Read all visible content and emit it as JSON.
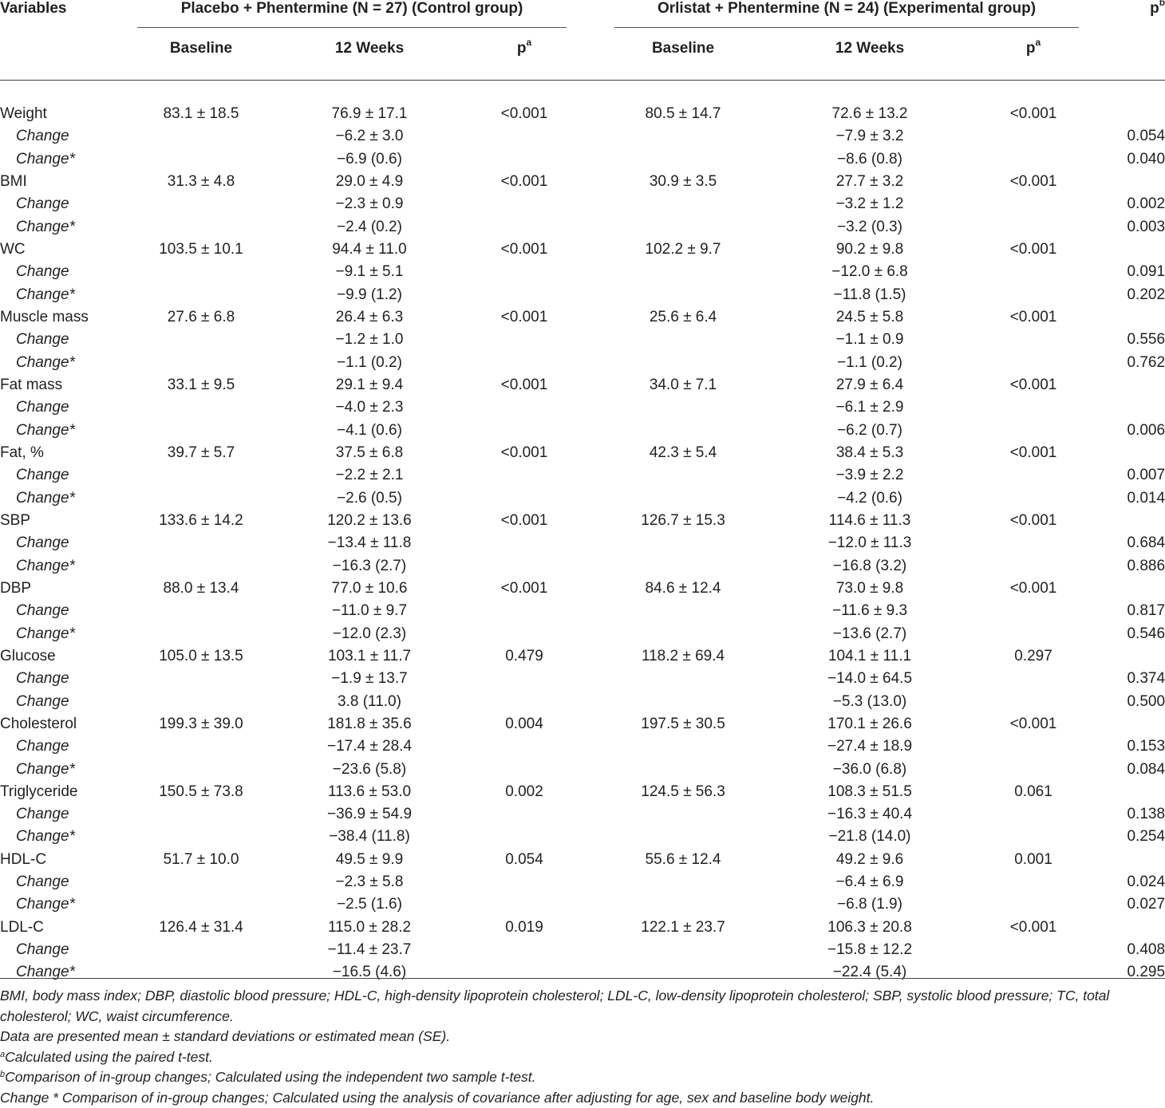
{
  "header": {
    "variables": "Variables",
    "control_group": "Placebo + Phentermine (N = 27) (Control group)",
    "experimental_group": "Orlistat + Phentermine (N = 24) (Experimental group)",
    "pb": "p",
    "pb_sup": "b",
    "baseline": "Baseline",
    "weeks12": "12 Weeks",
    "pa": "p",
    "pa_sup": "a"
  },
  "rows": [
    {
      "var": "Weight",
      "sub": false,
      "cb": "83.1 ± 18.5",
      "cw": "76.9 ± 17.1",
      "cp": "<0.001",
      "eb": "80.5 ± 14.7",
      "ew": "72.6 ± 13.2",
      "ep": "<0.001",
      "pb": ""
    },
    {
      "var": "Change",
      "sub": true,
      "cb": "",
      "cw": "−6.2 ± 3.0",
      "cp": "",
      "eb": "",
      "ew": "−7.9 ± 3.2",
      "ep": "",
      "pb": "0.054"
    },
    {
      "var": "Change*",
      "sub": true,
      "cb": "",
      "cw": "−6.9 (0.6)",
      "cp": "",
      "eb": "",
      "ew": "−8.6 (0.8)",
      "ep": "",
      "pb": "0.040"
    },
    {
      "var": "BMI",
      "sub": false,
      "cb": "31.3 ± 4.8",
      "cw": "29.0 ± 4.9",
      "cp": "<0.001",
      "eb": "30.9 ± 3.5",
      "ew": "27.7 ± 3.2",
      "ep": "<0.001",
      "pb": ""
    },
    {
      "var": "Change",
      "sub": true,
      "cb": "",
      "cw": "−2.3 ± 0.9",
      "cp": "",
      "eb": "",
      "ew": "−3.2 ± 1.2",
      "ep": "",
      "pb": "0.002"
    },
    {
      "var": "Change*",
      "sub": true,
      "cb": "",
      "cw": "−2.4 (0.2)",
      "cp": "",
      "eb": "",
      "ew": "−3.2 (0.3)",
      "ep": "",
      "pb": "0.003"
    },
    {
      "var": "WC",
      "sub": false,
      "cb": "103.5 ± 10.1",
      "cw": "94.4 ± 11.0",
      "cp": "<0.001",
      "eb": "102.2 ± 9.7",
      "ew": "90.2 ± 9.8",
      "ep": "<0.001",
      "pb": ""
    },
    {
      "var": "Change",
      "sub": true,
      "cb": "",
      "cw": "−9.1 ± 5.1",
      "cp": "",
      "eb": "",
      "ew": "−12.0 ± 6.8",
      "ep": "",
      "pb": "0.091"
    },
    {
      "var": "Change*",
      "sub": true,
      "cb": "",
      "cw": "−9.9 (1.2)",
      "cp": "",
      "eb": "",
      "ew": "−11.8 (1.5)",
      "ep": "",
      "pb": "0.202"
    },
    {
      "var": "Muscle mass",
      "sub": false,
      "cb": "27.6 ± 6.8",
      "cw": "26.4 ± 6.3",
      "cp": "<0.001",
      "eb": "25.6 ± 6.4",
      "ew": "24.5 ± 5.8",
      "ep": "<0.001",
      "pb": ""
    },
    {
      "var": "Change",
      "sub": true,
      "cb": "",
      "cw": "−1.2 ± 1.0",
      "cp": "",
      "eb": "",
      "ew": "−1.1 ± 0.9",
      "ep": "",
      "pb": "0.556"
    },
    {
      "var": "Change*",
      "sub": true,
      "cb": "",
      "cw": "−1.1 (0.2)",
      "cp": "",
      "eb": "",
      "ew": "−1.1 (0.2)",
      "ep": "",
      "pb": "0.762"
    },
    {
      "var": "Fat mass",
      "sub": false,
      "cb": "33.1 ± 9.5",
      "cw": "29.1 ± 9.4",
      "cp": "<0.001",
      "eb": "34.0 ± 7.1",
      "ew": "27.9 ± 6.4",
      "ep": "<0.001",
      "pb": ""
    },
    {
      "var": "Change",
      "sub": true,
      "cb": "",
      "cw": "−4.0 ± 2.3",
      "cp": "",
      "eb": "",
      "ew": "−6.1 ± 2.9",
      "ep": "",
      "pb": ""
    },
    {
      "var": "Change*",
      "sub": true,
      "cb": "",
      "cw": "−4.1 (0.6)",
      "cp": "",
      "eb": "",
      "ew": "−6.2 (0.7)",
      "ep": "",
      "pb": "0.006"
    },
    {
      "var": "Fat, %",
      "sub": false,
      "cb": "39.7 ± 5.7",
      "cw": "37.5 ± 6.8",
      "cp": "<0.001",
      "eb": "42.3 ± 5.4",
      "ew": "38.4 ± 5.3",
      "ep": "<0.001",
      "pb": ""
    },
    {
      "var": "Change",
      "sub": true,
      "cb": "",
      "cw": "−2.2 ± 2.1",
      "cp": "",
      "eb": "",
      "ew": "−3.9 ± 2.2",
      "ep": "",
      "pb": "0.007"
    },
    {
      "var": "Change*",
      "sub": true,
      "cb": "",
      "cw": "−2.6 (0.5)",
      "cp": "",
      "eb": "",
      "ew": "−4.2 (0.6)",
      "ep": "",
      "pb": "0.014"
    },
    {
      "var": "SBP",
      "sub": false,
      "cb": "133.6 ± 14.2",
      "cw": "120.2 ± 13.6",
      "cp": "<0.001",
      "eb": "126.7 ± 15.3",
      "ew": "114.6 ± 11.3",
      "ep": "<0.001",
      "pb": ""
    },
    {
      "var": "Change",
      "sub": true,
      "cb": "",
      "cw": "−13.4 ± 11.8",
      "cp": "",
      "eb": "",
      "ew": "−12.0 ± 11.3",
      "ep": "",
      "pb": "0.684"
    },
    {
      "var": "Change*",
      "sub": true,
      "cb": "",
      "cw": "−16.3 (2.7)",
      "cp": "",
      "eb": "",
      "ew": "−16.8 (3.2)",
      "ep": "",
      "pb": "0.886"
    },
    {
      "var": "DBP",
      "sub": false,
      "cb": "88.0 ± 13.4",
      "cw": "77.0 ± 10.6",
      "cp": "<0.001",
      "eb": "84.6 ± 12.4",
      "ew": "73.0 ± 9.8",
      "ep": "<0.001",
      "pb": ""
    },
    {
      "var": "Change",
      "sub": true,
      "cb": "",
      "cw": "−11.0 ± 9.7",
      "cp": "",
      "eb": "",
      "ew": "−11.6 ± 9.3",
      "ep": "",
      "pb": "0.817"
    },
    {
      "var": "Change*",
      "sub": true,
      "cb": "",
      "cw": "−12.0 (2.3)",
      "cp": "",
      "eb": "",
      "ew": "−13.6 (2.7)",
      "ep": "",
      "pb": "0.546"
    },
    {
      "var": "Glucose",
      "sub": false,
      "cb": "105.0 ± 13.5",
      "cw": "103.1 ± 11.7",
      "cp": "0.479",
      "eb": "118.2 ± 69.4",
      "ew": "104.1 ± 11.1",
      "ep": "0.297",
      "pb": ""
    },
    {
      "var": "Change",
      "sub": true,
      "cb": "",
      "cw": "−1.9 ± 13.7",
      "cp": "",
      "eb": "",
      "ew": "−14.0 ± 64.5",
      "ep": "",
      "pb": "0.374"
    },
    {
      "var": "Change",
      "sub": true,
      "cb": "",
      "cw": "3.8 (11.0)",
      "cp": "",
      "eb": "",
      "ew": "−5.3 (13.0)",
      "ep": "",
      "pb": "0.500"
    },
    {
      "var": "Cholesterol",
      "sub": false,
      "cb": "199.3 ± 39.0",
      "cw": "181.8 ± 35.6",
      "cp": "0.004",
      "eb": "197.5 ± 30.5",
      "ew": "170.1 ± 26.6",
      "ep": "<0.001",
      "pb": ""
    },
    {
      "var": "Change",
      "sub": true,
      "cb": "",
      "cw": "−17.4 ± 28.4",
      "cp": "",
      "eb": "",
      "ew": "−27.4 ± 18.9",
      "ep": "",
      "pb": "0.153"
    },
    {
      "var": "Change*",
      "sub": true,
      "cb": "",
      "cw": "−23.6 (5.8)",
      "cp": "",
      "eb": "",
      "ew": "−36.0 (6.8)",
      "ep": "",
      "pb": "0.084"
    },
    {
      "var": "Triglyceride",
      "sub": false,
      "cb": "150.5 ± 73.8",
      "cw": "113.6 ± 53.0",
      "cp": "0.002",
      "eb": "124.5 ± 56.3",
      "ew": "108.3 ± 51.5",
      "ep": "0.061",
      "pb": ""
    },
    {
      "var": "Change",
      "sub": true,
      "cb": "",
      "cw": "−36.9 ± 54.9",
      "cp": "",
      "eb": "",
      "ew": "−16.3 ± 40.4",
      "ep": "",
      "pb": "0.138"
    },
    {
      "var": "Change*",
      "sub": true,
      "cb": "",
      "cw": "−38.4 (11.8)",
      "cp": "",
      "eb": "",
      "ew": "−21.8 (14.0)",
      "ep": "",
      "pb": "0.254"
    },
    {
      "var": "HDL-C",
      "sub": false,
      "cb": "51.7 ± 10.0",
      "cw": "49.5 ± 9.9",
      "cp": "0.054",
      "eb": "55.6 ± 12.4",
      "ew": "49.2 ± 9.6",
      "ep": "0.001",
      "pb": ""
    },
    {
      "var": "Change",
      "sub": true,
      "cb": "",
      "cw": "−2.3 ± 5.8",
      "cp": "",
      "eb": "",
      "ew": "−6.4 ± 6.9",
      "ep": "",
      "pb": "0.024"
    },
    {
      "var": "Change*",
      "sub": true,
      "cb": "",
      "cw": "−2.5 (1.6)",
      "cp": "",
      "eb": "",
      "ew": "−6.8 (1.9)",
      "ep": "",
      "pb": "0.027"
    },
    {
      "var": "LDL-C",
      "sub": false,
      "cb": "126.4 ± 31.4",
      "cw": "115.0 ± 28.2",
      "cp": "0.019",
      "eb": "122.1 ± 23.7",
      "ew": "106.3 ± 20.8",
      "ep": "<0.001",
      "pb": ""
    },
    {
      "var": "Change",
      "sub": true,
      "cb": "",
      "cw": "−11.4 ± 23.7",
      "cp": "",
      "eb": "",
      "ew": "−15.8 ± 12.2",
      "ep": "",
      "pb": "0.408"
    },
    {
      "var": "Change*",
      "sub": true,
      "cb": "",
      "cw": "−16.5 (4.6)",
      "cp": "",
      "eb": "",
      "ew": "−22.4 (5.4)",
      "ep": "",
      "pb": "0.295"
    }
  ],
  "notes": {
    "abbreviations": "BMI, body mass index; DBP, diastolic blood pressure; HDL-C, high-density lipoprotein cholesterol; LDL-C, low-density lipoprotein cholesterol; SBP, systolic blood pressure; TC, total cholesterol; WC, waist circumference.",
    "presentation": "Data are presented mean ± standard deviations or estimated mean (SE).",
    "a_marker": "a",
    "a_text": "Calculated using the paired t-test.",
    "b_marker": "b",
    "b_text": "Comparison of in-group changes; Calculated using the independent two sample t-test.",
    "change_star": "Change * Comparison of in-group changes; Calculated using the analysis of covariance after adjusting for age, sex and baseline body weight."
  }
}
